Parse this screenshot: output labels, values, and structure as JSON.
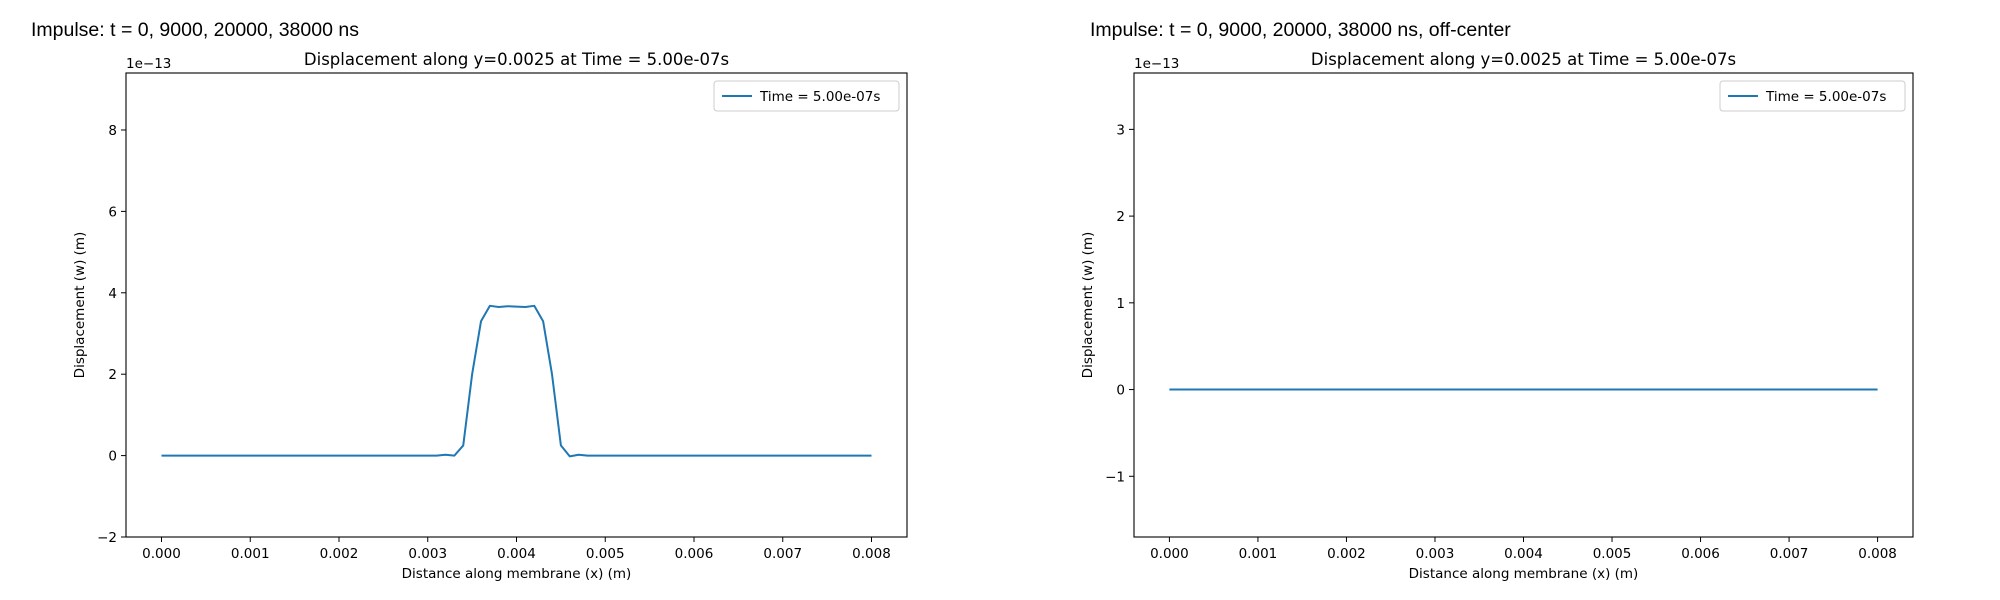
{
  "panels": [
    {
      "title": "Impulse: t = 0, 9000, 20000, 38000 ns"
    },
    {
      "title": "Impulse: t = 0, 9000, 20000, 38000 ns, off-center"
    }
  ],
  "chart_data": [
    {
      "type": "line",
      "title": "Displacement along y=0.0025 at Time = 5.00e-07s",
      "xlabel": "Distance along membrane (x) (m)",
      "ylabel": "Displacement (w) (m)",
      "y_scale_note": "1e−13",
      "xlim": [
        -0.0004,
        0.0084
      ],
      "ylim": [
        -2,
        9.4
      ],
      "x_ticks": [
        "0.000",
        "0.001",
        "0.002",
        "0.003",
        "0.004",
        "0.005",
        "0.006",
        "0.007",
        "0.008"
      ],
      "x_tick_values": [
        0,
        0.001,
        0.002,
        0.003,
        0.004,
        0.005,
        0.006,
        0.007,
        0.008
      ],
      "y_ticks": [
        "−2",
        "0",
        "2",
        "4",
        "6",
        "8"
      ],
      "y_tick_values": [
        -2,
        0,
        2,
        4,
        6,
        8
      ],
      "legend": {
        "position": "top-right"
      },
      "color": "#1f77b4",
      "series": [
        {
          "name": "Time = 5.00e-07s",
          "x": [
            0,
            0.001,
            0.002,
            0.003,
            0.0031,
            0.0032,
            0.0033,
            0.0034,
            0.0035,
            0.0036,
            0.0037,
            0.0038,
            0.0039,
            0.004,
            0.0041,
            0.0042,
            0.0043,
            0.0044,
            0.0045,
            0.0046,
            0.0047,
            0.0048,
            0.005,
            0.006,
            0.007,
            0.008
          ],
          "y": [
            0,
            0,
            0,
            0,
            0,
            0.02,
            0,
            0.25,
            2.0,
            3.3,
            3.68,
            3.65,
            3.67,
            3.66,
            3.65,
            3.68,
            3.3,
            2.0,
            0.25,
            -0.02,
            0.02,
            0,
            0,
            0,
            0,
            0
          ]
        }
      ]
    },
    {
      "type": "line",
      "title": "Displacement along y=0.0025 at Time = 5.00e-07s",
      "xlabel": "Distance along membrane (x) (m)",
      "ylabel": "Displacement (w) (m)",
      "y_scale_note": "1e−13",
      "xlim": [
        -0.0004,
        0.0084
      ],
      "ylim": [
        -1.7,
        3.65
      ],
      "x_ticks": [
        "0.000",
        "0.001",
        "0.002",
        "0.003",
        "0.004",
        "0.005",
        "0.006",
        "0.007",
        "0.008"
      ],
      "x_tick_values": [
        0,
        0.001,
        0.002,
        0.003,
        0.004,
        0.005,
        0.006,
        0.007,
        0.008
      ],
      "y_ticks": [
        "−1",
        "0",
        "1",
        "2",
        "3"
      ],
      "y_tick_values": [
        -1,
        0,
        1,
        2,
        3
      ],
      "legend": {
        "position": "top-right"
      },
      "color": "#1f77b4",
      "series": [
        {
          "name": "Time = 5.00e-07s",
          "x": [
            0,
            0.001,
            0.002,
            0.003,
            0.004,
            0.005,
            0.006,
            0.007,
            0.008
          ],
          "y": [
            0,
            0,
            0,
            0,
            0,
            0,
            0,
            0,
            0
          ]
        }
      ]
    }
  ]
}
